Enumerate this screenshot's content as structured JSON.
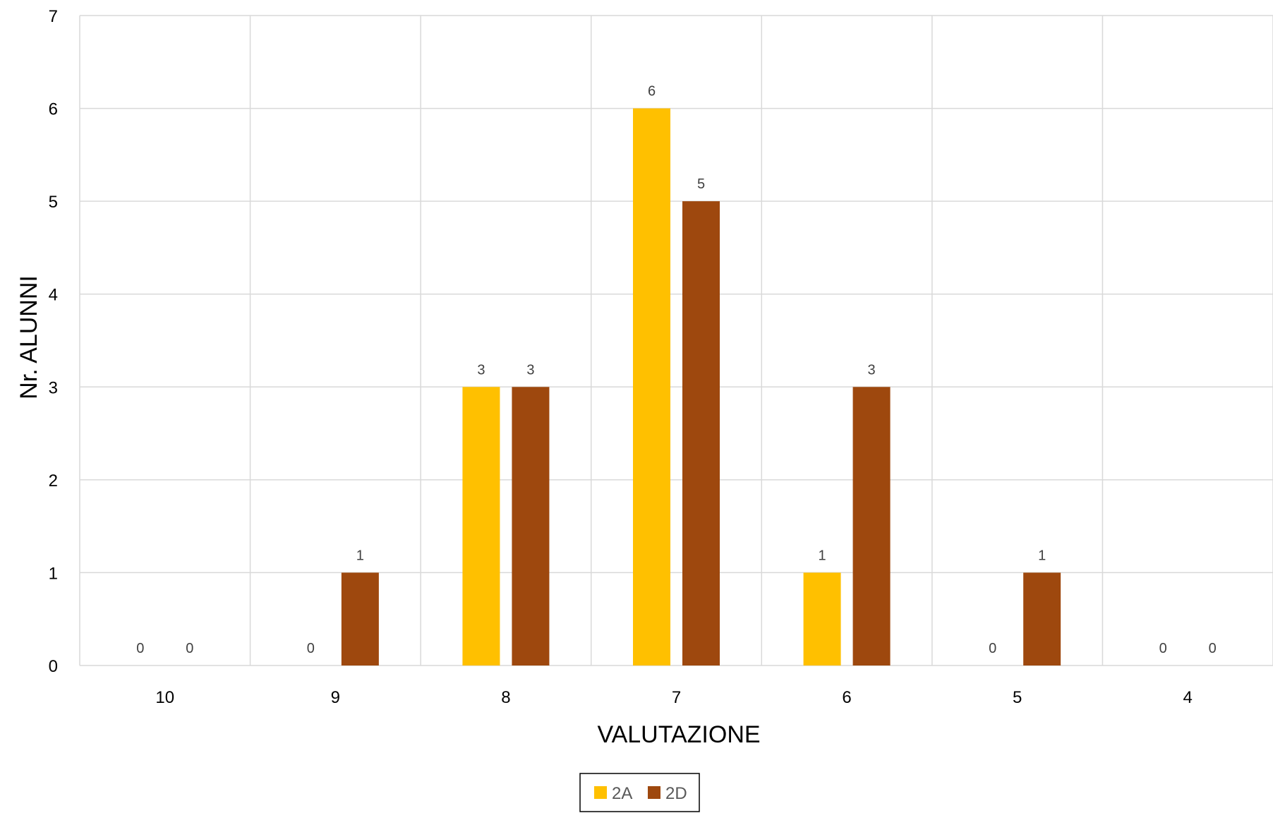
{
  "chart_data": {
    "type": "bar",
    "categories": [
      "10",
      "9",
      "8",
      "7",
      "6",
      "5",
      "4"
    ],
    "series": [
      {
        "name": "2A",
        "color": "#FFC000",
        "values": [
          0,
          0,
          3,
          6,
          1,
          0,
          0
        ]
      },
      {
        "name": "2D",
        "color": "#9E480E",
        "values": [
          0,
          1,
          3,
          5,
          3,
          1,
          0
        ]
      }
    ],
    "xlabel": "VALUTAZIONE",
    "ylabel": "Nr. ALUNNI",
    "ylim": [
      0,
      7
    ],
    "yticks": [
      0,
      1,
      2,
      3,
      4,
      5,
      6,
      7
    ],
    "grid": true,
    "data_labels": true,
    "legend_position": "bottom"
  }
}
